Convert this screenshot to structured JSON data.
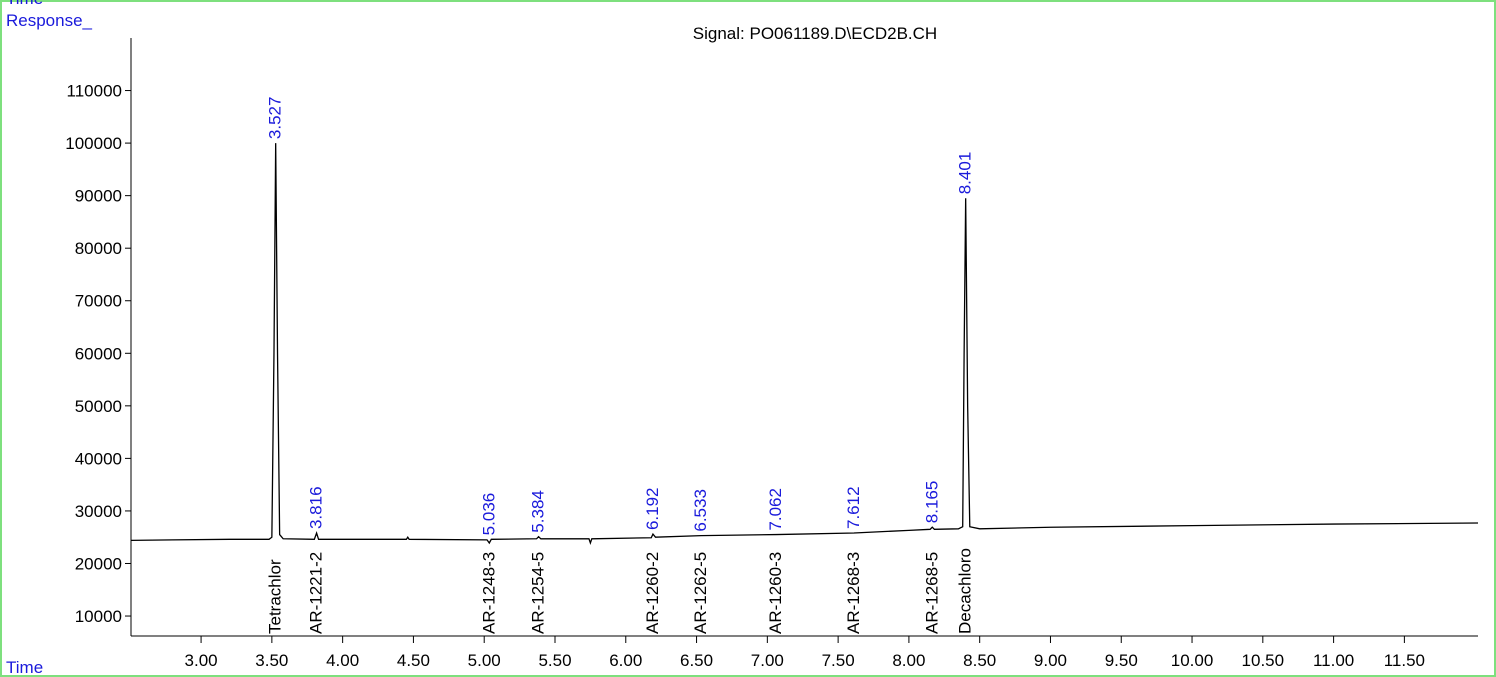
{
  "chart_data": {
    "type": "line",
    "header_label": "Time",
    "ylabel": "Response_",
    "xlabel": "Time",
    "title": "Signal: PO061189.D\\ECD2B.CH",
    "x": [
      2.505,
      2.8,
      3.2,
      3.48,
      3.5,
      3.515,
      3.527,
      3.54,
      3.555,
      3.58,
      3.8,
      3.816,
      3.83,
      4.45,
      4.46,
      4.47,
      5.02,
      5.036,
      5.05,
      5.37,
      5.384,
      5.4,
      5.74,
      5.75,
      5.76,
      6.18,
      6.192,
      6.21,
      6.533,
      7.062,
      7.612,
      8.0,
      8.15,
      8.165,
      8.18,
      8.35,
      8.38,
      8.39,
      8.401,
      8.415,
      8.43,
      8.5,
      9.0,
      10.0,
      11.0,
      12.02
    ],
    "values": [
      24400,
      24500,
      24600,
      24600,
      25000,
      60000,
      100000,
      60000,
      25500,
      24700,
      24600,
      25800,
      24600,
      24600,
      25000,
      24600,
      24500,
      23900,
      24600,
      24700,
      25100,
      24700,
      24700,
      23900,
      24700,
      24900,
      25600,
      25000,
      25300,
      25500,
      25800,
      26300,
      26500,
      26900,
      26500,
      26600,
      27000,
      60000,
      89500,
      50000,
      27000,
      26600,
      26900,
      27200,
      27500,
      27700
    ],
    "color": "#000000",
    "peak_labels": [
      {
        "text": "3.527",
        "x": 3.527,
        "y": 100000
      },
      {
        "text": "3.816",
        "x": 3.816,
        "y": 25800
      },
      {
        "text": "5.036",
        "x": 5.036,
        "y": 24600
      },
      {
        "text": "5.384",
        "x": 5.384,
        "y": 25100
      },
      {
        "text": "6.192",
        "x": 6.192,
        "y": 25600
      },
      {
        "text": "6.533",
        "x": 6.533,
        "y": 25300
      },
      {
        "text": "7.062",
        "x": 7.062,
        "y": 25500
      },
      {
        "text": "7.612",
        "x": 7.612,
        "y": 25800
      },
      {
        "text": "8.165",
        "x": 8.165,
        "y": 26900
      },
      {
        "text": "8.401",
        "x": 8.401,
        "y": 89500
      }
    ],
    "peak_label_color": "#1a1adb",
    "compound_labels": [
      {
        "text": "Tetrachlor",
        "x": 3.527
      },
      {
        "text": "AR-1221-2",
        "x": 3.816
      },
      {
        "text": "AR-1248-3",
        "x": 5.036
      },
      {
        "text": "AR-1254-5",
        "x": 5.384
      },
      {
        "text": "AR-1260-2",
        "x": 6.192
      },
      {
        "text": "AR-1262-5",
        "x": 6.533
      },
      {
        "text": "AR-1260-3",
        "x": 7.062
      },
      {
        "text": "AR-1268-3",
        "x": 7.612
      },
      {
        "text": "AR-1268-5",
        "x": 8.165
      },
      {
        "text": "Decachloro",
        "x": 8.401
      }
    ],
    "xlim": [
      2.505,
      12.02
    ],
    "ylim": [
      6200,
      120000
    ],
    "xticks": [
      {
        "value": 3,
        "label": "3.00"
      },
      {
        "value": 3.5,
        "label": "3.50"
      },
      {
        "value": 4,
        "label": "4.00"
      },
      {
        "value": 4.5,
        "label": "4.50"
      },
      {
        "value": 5,
        "label": "5.00"
      },
      {
        "value": 5.5,
        "label": "5.50"
      },
      {
        "value": 6,
        "label": "6.00"
      },
      {
        "value": 6.5,
        "label": "6.50"
      },
      {
        "value": 7,
        "label": "7.00"
      },
      {
        "value": 7.5,
        "label": "7.50"
      },
      {
        "value": 8,
        "label": "8.00"
      },
      {
        "value": 8.5,
        "label": "8.50"
      },
      {
        "value": 9,
        "label": "9.00"
      },
      {
        "value": 9.5,
        "label": "9.50"
      },
      {
        "value": 10,
        "label": "10.00"
      },
      {
        "value": 10.5,
        "label": "10.50"
      },
      {
        "value": 11,
        "label": "11.00"
      },
      {
        "value": 11.5,
        "label": "11.50"
      }
    ],
    "yticks": [
      10000,
      20000,
      30000,
      40000,
      50000,
      60000,
      70000,
      80000,
      90000,
      100000,
      110000
    ],
    "grid": false
  }
}
